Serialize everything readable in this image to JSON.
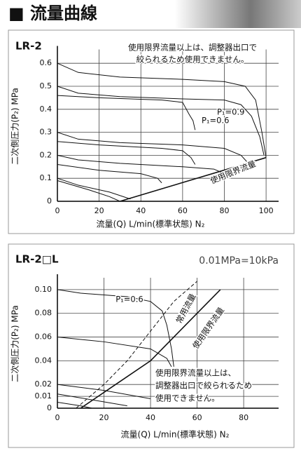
{
  "header": {
    "title": "■ 流量曲線"
  },
  "chart_data": [
    {
      "type": "line",
      "title": "LR-2",
      "xlabel": "流量(Q) L/min(標準状態) N₂",
      "ylabel": "二次側圧力(P₂) MPa",
      "xlim": [
        0,
        106
      ],
      "ylim": [
        0,
        0.66
      ],
      "xticks": [
        0,
        20,
        40,
        60,
        80,
        100
      ],
      "yticks": [
        0,
        0.1,
        0.2,
        0.3,
        0.4,
        0.5,
        0.6
      ],
      "grid": true,
      "color": "#111",
      "annotations": [
        "使用限界流量以上は、調整器出口で",
        "絞られるため使用できません。",
        "P₁=0.9",
        "P₁=0.6",
        "使用限界流量"
      ],
      "series": [
        {
          "x": [
            0,
            10,
            30,
            60,
            80,
            90,
            95,
            98,
            100
          ],
          "values": [
            0.6,
            0.56,
            0.54,
            0.53,
            0.52,
            0.5,
            0.44,
            0.3,
            0.19
          ]
        },
        {
          "x": [
            0,
            10,
            30,
            60,
            80,
            88,
            93,
            97,
            99
          ],
          "values": [
            0.5,
            0.47,
            0.455,
            0.445,
            0.44,
            0.42,
            0.37,
            0.28,
            0.2
          ]
        },
        {
          "x": [
            0,
            20,
            50,
            60,
            63,
            65,
            66
          ],
          "values": [
            0.46,
            0.45,
            0.44,
            0.43,
            0.38,
            0.35,
            0.31
          ]
        },
        {
          "x": [
            0,
            10,
            30,
            60,
            80,
            88,
            91
          ],
          "values": [
            0.3,
            0.27,
            0.255,
            0.245,
            0.23,
            0.2,
            0.17
          ]
        },
        {
          "x": [
            0,
            20,
            50,
            60,
            64,
            66
          ],
          "values": [
            0.26,
            0.245,
            0.23,
            0.22,
            0.19,
            0.16
          ]
        },
        {
          "x": [
            0,
            10,
            30,
            60,
            75,
            80
          ],
          "values": [
            0.2,
            0.18,
            0.165,
            0.15,
            0.14,
            0.12
          ]
        },
        {
          "x": [
            0,
            20,
            40,
            48,
            50
          ],
          "values": [
            0.16,
            0.135,
            0.12,
            0.1,
            0.08
          ]
        },
        {
          "x": [
            0,
            10,
            25,
            35
          ],
          "values": [
            0.1,
            0.07,
            0.04,
            0.01
          ]
        },
        {
          "x": [
            0,
            15,
            25,
            30
          ],
          "values": [
            0.09,
            0.05,
            0.02,
            0
          ]
        },
        {
          "x": [
            30,
            100
          ],
          "values": [
            0,
            0.19
          ],
          "width": 1.6
        }
      ]
    },
    {
      "type": "line",
      "title": "LR-2□L",
      "subtitle": "0.01MPa=10kPa",
      "xlabel": "流量(Q) L/min(標準状態) N₂",
      "ylabel": "二次側圧力(P₂) MPa",
      "xlim": [
        0,
        95
      ],
      "ylim": [
        0,
        0.11
      ],
      "xticks": [
        0,
        20,
        40,
        60,
        80
      ],
      "yticks": [
        0,
        0.01,
        0.02,
        0.04,
        0.06,
        0.08,
        {
          "value": 0.1,
          "label": "0.10"
        }
      ],
      "grid": true,
      "color": "#111",
      "annotations": [
        "P₁=0.6",
        "常用流量",
        "使用限界流量",
        "使用限界流量以上は、",
        "調整器出口で絞られるため",
        "使用できません。"
      ],
      "series": [
        {
          "x": [
            0,
            10,
            30,
            40,
            45,
            47,
            49,
            50
          ],
          "values": [
            0.1,
            0.097,
            0.094,
            0.09,
            0.082,
            0.07,
            0.05,
            0.035
          ]
        },
        {
          "x": [
            0,
            20,
            40,
            47,
            49
          ],
          "values": [
            0.06,
            0.056,
            0.05,
            0.042,
            0.035
          ]
        },
        {
          "x": [
            0,
            20,
            40
          ],
          "values": [
            0.02,
            0.015,
            0.008
          ]
        },
        {
          "x": [
            0,
            15,
            30
          ],
          "values": [
            0.012,
            0.007,
            0.002
          ]
        },
        {
          "x": [
            0,
            10,
            15
          ],
          "values": [
            0.005,
            0.002,
            0
          ]
        },
        {
          "x": [
            8,
            20,
            30,
            40,
            50,
            60
          ],
          "values": [
            0,
            0.02,
            0.04,
            0.065,
            0.09,
            0.107
          ],
          "style": "dashed"
        },
        {
          "x": [
            10,
            25,
            40,
            50,
            60,
            70
          ],
          "values": [
            0,
            0.02,
            0.04,
            0.06,
            0.08,
            0.1
          ],
          "width": 1.6
        }
      ]
    }
  ]
}
